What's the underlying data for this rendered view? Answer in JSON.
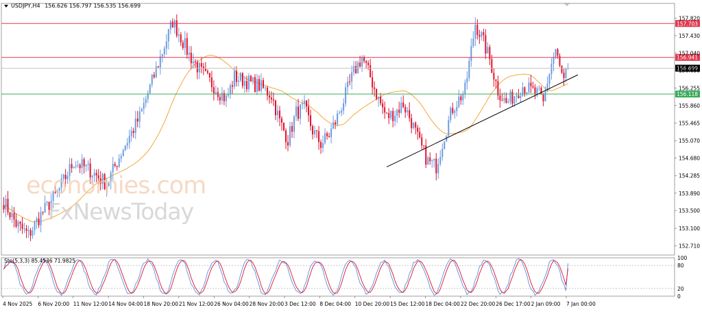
{
  "header": {
    "symbol": "USDJPY,H4",
    "ohlc": "156.626 156.797 156.535 156.699"
  },
  "watermark": {
    "line1": "economies.com",
    "line2": "FxNewsToday"
  },
  "colors": {
    "bull": "#6a9ae0",
    "bear": "#e0102a",
    "ma": "#f3a73b",
    "resistance": "#e0394f",
    "support": "#3aaa5a",
    "trendline": "#000000",
    "stoch_main": "#5b90e0",
    "stoch_signal": "#e0102a",
    "price_tag_bg": "#000000"
  },
  "chart_data": [
    {
      "type": "candlestick",
      "title": "USDJPY,H4",
      "timeframe": "H4",
      "ylim": [
        152.5,
        158.0
      ],
      "y_ticks": [
        "157.820",
        "157.430",
        "157.040",
        "156.650",
        "156.255",
        "155.860",
        "155.465",
        "155.070",
        "154.680",
        "154.285",
        "153.890",
        "153.500",
        "153.100",
        "152.710"
      ],
      "x_tick_labels": [
        "4 Nov 2025",
        "6 Nov 20:00",
        "11 Nov 12:00",
        "14 Nov 04:00",
        "18 Nov 20:00",
        "21 Nov 12:00",
        "26 Nov 04:00",
        "28 Nov 20:00",
        "3 Dec 12:00",
        "8 Dec 04:00",
        "10 Dec 20:00",
        "15 Dec 12:00",
        "18 Dec 04:00",
        "22 Dec 20:00",
        "26 Dec 17:00",
        "2 Jan 09:00",
        "7 Jan 00:00"
      ],
      "current_price": 156.699,
      "current_price_label": "156.699",
      "horizontal_lines": [
        {
          "value": 157.703,
          "label": "157.703",
          "color": "#e0394f"
        },
        {
          "value": 156.941,
          "label": "156.941",
          "color": "#e0394f"
        },
        {
          "value": 156.118,
          "label": "156.118",
          "color": "#3aaa5a"
        }
      ],
      "trendline": {
        "start": {
          "x": "15 Dec 12:00",
          "y": 154.48
        },
        "end": {
          "x": "7 Jan 00:00",
          "y": 156.55
        }
      },
      "moving_average": {
        "color": "#f3a73b"
      },
      "key_levels": {
        "open_area": 153.8,
        "low_early_nov": 152.9,
        "high_20_nov": 157.85,
        "low_28_nov": 154.9,
        "high_8_dec": 156.95,
        "low_15_dec": 154.5,
        "high_18_dec": 157.78,
        "high_1_jan": 157.2,
        "last": 156.7
      },
      "grid": false
    },
    {
      "type": "line",
      "title": "Sto(5,3,3) 85.4536 71.9825",
      "ylim": [
        0,
        100
      ],
      "y_ticks": [
        "100",
        "80",
        "20",
        "0"
      ],
      "levels": [
        20,
        80
      ],
      "series": [
        {
          "name": "Sto(5,3,3)",
          "last": 85.4536,
          "color": "#5b90e0"
        },
        {
          "name": "Signal",
          "last": 71.9825,
          "color": "#e0102a"
        }
      ]
    }
  ]
}
